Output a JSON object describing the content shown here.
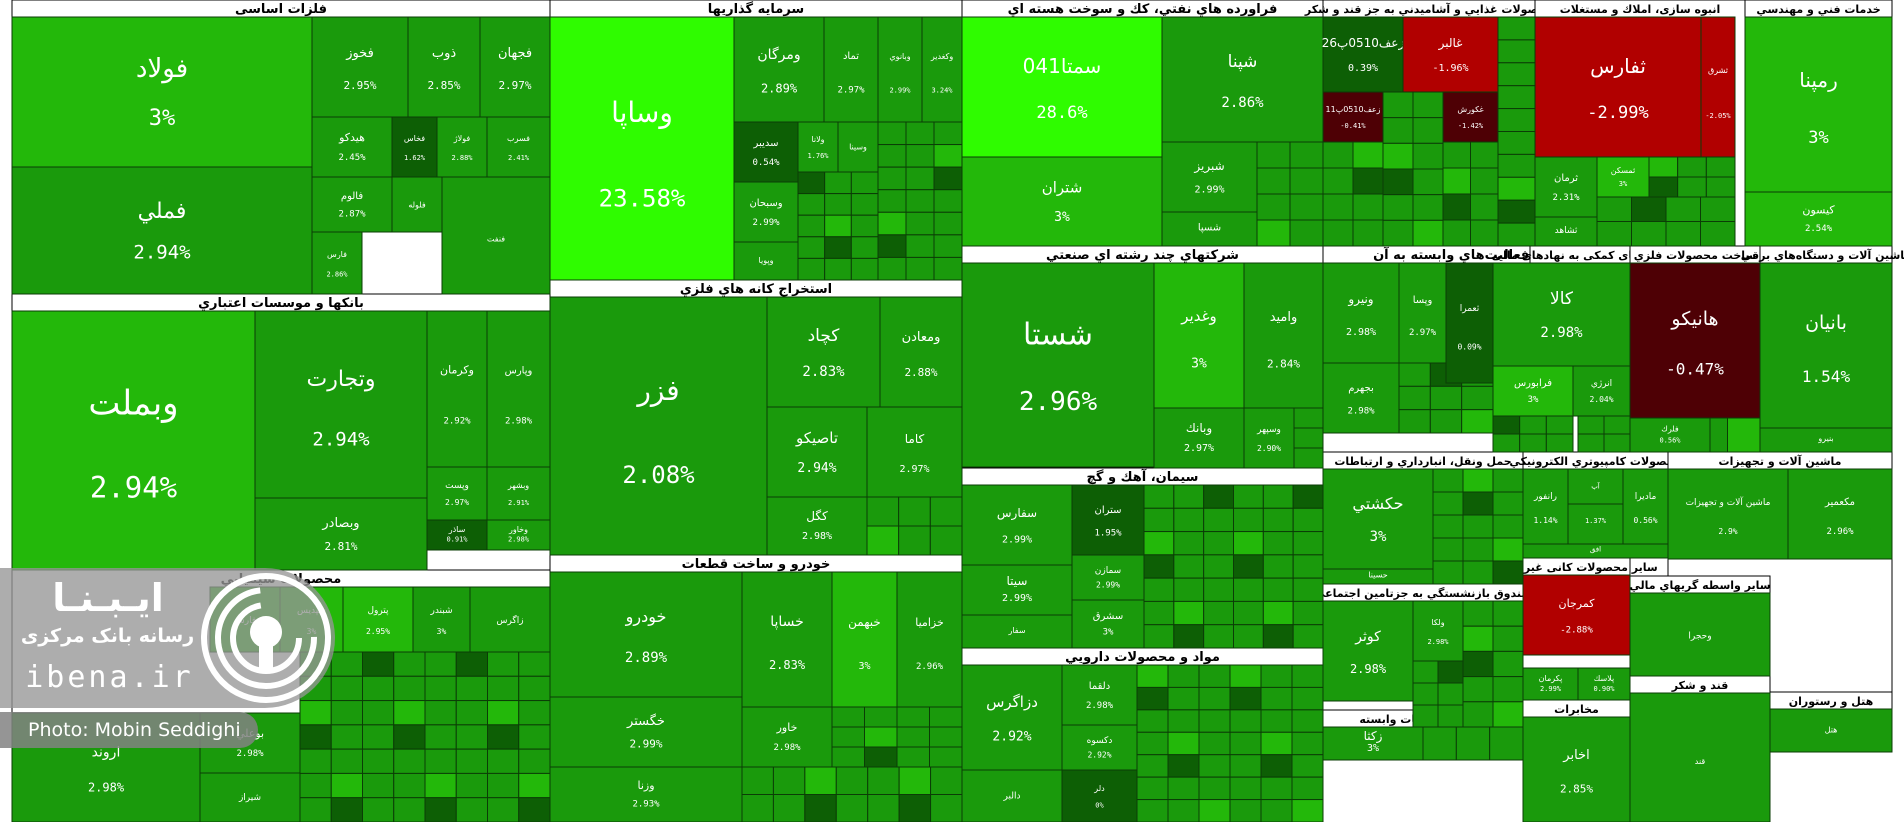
{
  "chart_data": {
    "type": "treemap",
    "value_unit": "%",
    "colors": {
      "strong_positive": "#2ffc00",
      "mid_positive": "#23b80a",
      "positive": "#1a9a0c",
      "dark_positive": "#0d5f05",
      "negative": "#b10000",
      "dark_negative": "#4e0005",
      "border": "#000000"
    },
    "sectors": [
      {
        "name": "فلزات اساسی",
        "stocks": [
          {
            "symbol": "فولاد",
            "change": "3%"
          },
          {
            "symbol": "فملي",
            "change": "2.94%"
          },
          {
            "symbol": "فخوز",
            "change": "2.95%"
          },
          {
            "symbol": "ذوب",
            "change": "2.85%"
          },
          {
            "symbol": "فجهان",
            "change": "2.97%"
          },
          {
            "symbol": "هيدكو",
            "change": "2.45%"
          },
          {
            "symbol": "فخاس",
            "change": "1.62%"
          },
          {
            "symbol": "فولاژ",
            "change": "2.88%"
          },
          {
            "symbol": "فسرب",
            "change": "2.41%"
          },
          {
            "symbol": "فلوله",
            "change": ""
          },
          {
            "symbol": "فالوم",
            "change": "2.87%"
          },
          {
            "symbol": "فارس",
            "change": "2.86%"
          },
          {
            "symbol": "فنفت",
            "change": ""
          }
        ]
      },
      {
        "name": "سرمایه گذاریها",
        "stocks": [
          {
            "symbol": "وساپا",
            "change": "23.58%"
          },
          {
            "symbol": "ومرگان",
            "change": "2.89%"
          },
          {
            "symbol": "تماد",
            "change": "2.97%"
          },
          {
            "symbol": "وبانوي",
            "change": "2.99%"
          },
          {
            "symbol": "وكغدير",
            "change": "3.24%"
          },
          {
            "symbol": "سديبر",
            "change": "0.54%"
          },
          {
            "symbol": "وسبحان",
            "change": "2.99%"
          },
          {
            "symbol": "ولانا",
            "change": "1.76%"
          },
          {
            "symbol": "وسينا",
            "change": ""
          },
          {
            "symbol": "وپويا",
            "change": ""
          }
        ]
      },
      {
        "name": "فراورده هاي نفتي، كك و سوخت هسته اي",
        "stocks": [
          {
            "symbol": "سمتا041",
            "change": "28.6%"
          },
          {
            "symbol": "شپنا",
            "change": "2.86%"
          },
          {
            "symbol": "شتران",
            "change": "3%"
          },
          {
            "symbol": "شبريز",
            "change": "2.99%"
          },
          {
            "symbol": "شسپا",
            "change": ""
          }
        ]
      },
      {
        "name": "محصولات غذايي و آشاميدني به جز قند و شكر",
        "stocks": [
          {
            "symbol": "زعف0510پ26",
            "change": "0.39%"
          },
          {
            "symbol": "غالبر",
            "change": "-1.96%"
          },
          {
            "symbol": "زعف0510پ11",
            "change": "-0.41%"
          },
          {
            "symbol": "غكورش",
            "change": "-1.42%"
          }
        ]
      },
      {
        "name": "انبوه سازی، املاك و مستغلات",
        "stocks": [
          {
            "symbol": "ثفارس",
            "change": "-2.99%"
          },
          {
            "symbol": "ثشرق",
            "change": "-2.05%"
          },
          {
            "symbol": "ثرمان",
            "change": "2.31%"
          },
          {
            "symbol": "ثمسكن",
            "change": "3%"
          },
          {
            "symbol": "ثشاهد",
            "change": ""
          }
        ]
      },
      {
        "name": "خدمات فني و مهندسي",
        "stocks": [
          {
            "symbol": "رمپنا",
            "change": "3%"
          },
          {
            "symbol": "كيسون",
            "change": "2.54%"
          }
        ]
      },
      {
        "name": "بانكها و موسسات اعتباري",
        "stocks": [
          {
            "symbol": "وبملت",
            "change": "2.94%"
          },
          {
            "symbol": "وتجارت",
            "change": "2.94%"
          },
          {
            "symbol": "وكرمان",
            "change": "2.92%"
          },
          {
            "symbol": "وپارس",
            "change": "2.98%"
          },
          {
            "symbol": "وبصادر",
            "change": "2.81%"
          },
          {
            "symbol": "وپست",
            "change": "2.97%"
          },
          {
            "symbol": "وبشهر",
            "change": "2.91%"
          },
          {
            "symbol": "ساذر",
            "change": "0.91%"
          },
          {
            "symbol": "وخاور",
            "change": "2.98%"
          }
        ]
      },
      {
        "name": "استخراج كانه هاي فلزي",
        "stocks": [
          {
            "symbol": "فزر",
            "change": "2.08%"
          },
          {
            "symbol": "كچاد",
            "change": "2.83%"
          },
          {
            "symbol": "ومعادن",
            "change": "2.88%"
          },
          {
            "symbol": "تاصيكو",
            "change": "2.94%"
          },
          {
            "symbol": "كاما",
            "change": "2.97%"
          },
          {
            "symbol": "كگل",
            "change": "2.98%"
          }
        ]
      },
      {
        "name": "شركتهاي چند رشته اي صنعتي",
        "stocks": [
          {
            "symbol": "شستا",
            "change": "2.96%"
          },
          {
            "symbol": "وغدير",
            "change": "3%"
          },
          {
            "symbol": "واميد",
            "change": "2.84%"
          },
          {
            "symbol": "وبانك",
            "change": "2.97%"
          },
          {
            "symbol": "وسپهر",
            "change": "2.90%"
          }
        ]
      },
      {
        "name": "رايانه و فعاليت‌هاي وابسته به آن",
        "stocks": [
          {
            "symbol": "ونيرو",
            "change": "2.98%"
          },
          {
            "symbol": "وپسا",
            "change": "2.97%"
          },
          {
            "symbol": "بجهرم",
            "change": "2.98%"
          },
          {
            "symbol": "ثعمرا",
            "change": "0.09%"
          }
        ]
      },
      {
        "name": "شرکتهای کمکی به نهادهای مالی",
        "stocks": [
          {
            "symbol": "كالا",
            "change": "2.98%"
          },
          {
            "symbol": "فرابورس",
            "change": "3%"
          },
          {
            "symbol": "انرژي",
            "change": "2.04%"
          }
        ]
      },
      {
        "name": "ساخت محصولات فلزي",
        "stocks": [
          {
            "symbol": "هانيكو",
            "change": "-0.47%"
          },
          {
            "symbol": "فلرك",
            "change": "0.56%"
          }
        ]
      },
      {
        "name": "ماشين آلات و دستگاه‌هاي برقي",
        "stocks": [
          {
            "symbol": "بانيان",
            "change": "1.54%"
          },
          {
            "symbol": "بنيرو",
            "change": ""
          }
        ]
      },
      {
        "name": "سيمان، آهك و گچ",
        "stocks": [
          {
            "symbol": "سفارس",
            "change": "2.99%"
          },
          {
            "symbol": "ستران",
            "change": "1.95%"
          },
          {
            "symbol": "سيتا",
            "change": "2.99%"
          },
          {
            "symbol": "سمازن",
            "change": "2.99%"
          },
          {
            "symbol": "سشرق",
            "change": "3%"
          },
          {
            "symbol": "سفار",
            "change": ""
          }
        ]
      },
      {
        "name": "حمل ونقل، انبارداري و ارتباطات",
        "stocks": [
          {
            "symbol": "حكشتي",
            "change": "3%"
          },
          {
            "symbol": "حسينا",
            "change": ""
          }
        ]
      },
      {
        "name": "صندوق بازنشستگي به جزتامين اجتماعي",
        "stocks": [
          {
            "symbol": "كوثر",
            "change": "2.98%"
          },
          {
            "symbol": "ولكا",
            "change": "2.98%"
          }
        ]
      },
      {
        "name": "زراعت و خدمات وابسته",
        "stocks": [
          {
            "symbol": "زكثا",
            "change": "3%"
          }
        ]
      },
      {
        "name": "مخابرات",
        "stocks": [
          {
            "symbol": "اخابر",
            "change": "2.85%"
          }
        ]
      },
      {
        "name": "خودرو و ساخت قطعات",
        "stocks": [
          {
            "symbol": "خودرو",
            "change": "2.89%"
          },
          {
            "symbol": "خساپا",
            "change": "2.83%"
          },
          {
            "symbol": "خبهمن",
            "change": "3%"
          },
          {
            "symbol": "خزاميا",
            "change": "2.96%"
          },
          {
            "symbol": "خگستر",
            "change": "2.99%"
          },
          {
            "symbol": "خاور",
            "change": "2.98%"
          },
          {
            "symbol": "وزنا",
            "change": "2.93%"
          }
        ]
      },
      {
        "name": "مواد و محصولات دارويي",
        "stocks": [
          {
            "symbol": "دزاگرس",
            "change": "2.92%"
          },
          {
            "symbol": "دلقما",
            "change": "2.98%"
          },
          {
            "symbol": "دكسوه",
            "change": "2.92%"
          },
          {
            "symbol": "دلر",
            "change": "0%"
          },
          {
            "symbol": "دالبر",
            "change": ""
          }
        ]
      },
      {
        "name": "محصولات شيميايي",
        "stocks": [
          {
            "symbol": "فارس",
            "change": ""
          },
          {
            "symbol": "شپديس",
            "change": "3%"
          },
          {
            "symbol": "پترول",
            "change": "2.95%"
          },
          {
            "symbol": "شبندر",
            "change": "3%"
          },
          {
            "symbol": "بوعلي",
            "change": "2.98%"
          },
          {
            "symbol": "اروند",
            "change": "2.98%"
          },
          {
            "symbol": "زاگرس",
            "change": ""
          },
          {
            "symbol": "شيراز",
            "change": ""
          }
        ]
      },
      {
        "name": "سایر محصولات کانی غیرفلزی",
        "stocks": [
          {
            "symbol": "كمرجان",
            "change": "-2.88%"
          }
        ]
      },
      {
        "name": "لاستيك و پلاستيك",
        "stocks": [
          {
            "symbol": "پكرمان",
            "change": "2.99%"
          },
          {
            "symbol": "پلاسك",
            "change": "0.90%"
          }
        ]
      },
      {
        "name": "محصولات كامپيوتري الكترونيكي",
        "stocks": [
          {
            "symbol": "رانفور",
            "change": "1.14%"
          },
          {
            "symbol": "الكتريك",
            "change": "1.37%"
          },
          {
            "symbol": "ماديرا",
            "change": "0.56%"
          },
          {
            "symbol": "افق",
            "change": ""
          },
          {
            "symbol": "آپ",
            "change": ""
          }
        ]
      },
      {
        "name": "ماشين آلات و تجهيزات",
        "stocks": [
          {
            "symbol": "ماشين آلات و تجهيزات",
            "change": "2.9%"
          },
          {
            "symbol": "مكعمير",
            "change": "2.96%"
          }
        ]
      },
      {
        "name": "ساير واسطه گريهاي مالي",
        "stocks": [
          {
            "symbol": "وحجرا",
            "change": ""
          }
        ]
      },
      {
        "name": "هتل و رستوران",
        "stocks": [
          {
            "symbol": "هتل",
            "change": ""
          }
        ]
      },
      {
        "name": "قند و شكر",
        "stocks": [
          {
            "symbol": "قند",
            "change": ""
          }
        ]
      }
    ]
  },
  "watermark": {
    "brand_fa": "ایـبـنـا",
    "tagline_fa": "رسانه بانک مرکزی",
    "url": "ibena.ir",
    "credit": "Photo: Mobin Seddighi",
    "icon": "broadcast-icon"
  }
}
